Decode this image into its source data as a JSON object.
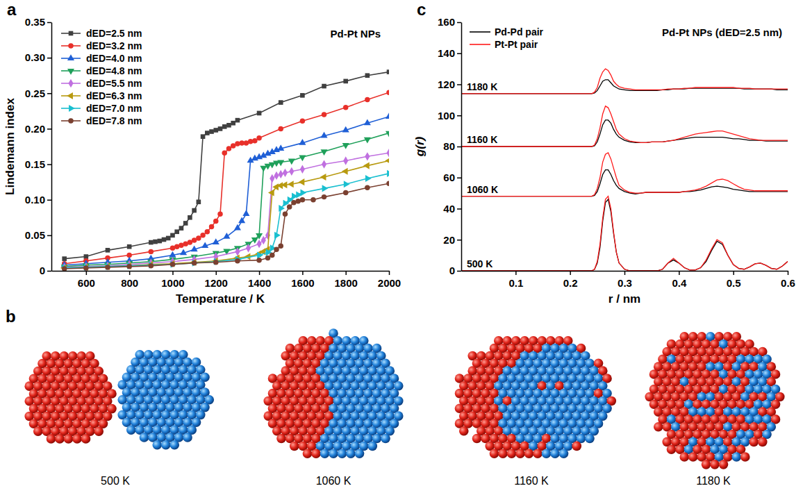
{
  "chart_data": [
    {
      "type": "line",
      "panel_label": "a",
      "annotation": "Pd-Pt NPs",
      "x_label": "Temperature / K",
      "y_label": "Lindemann index",
      "xlim": [
        440,
        2000
      ],
      "xticks": [
        600,
        800,
        1000,
        1200,
        1400,
        1600,
        1800,
        2000
      ],
      "ylim": [
        0,
        0.35
      ],
      "yticks": [
        0,
        0.05,
        {
          "value": 0.1,
          "label": "0.10"
        },
        0.15,
        {
          "value": 0.2,
          "label": "0.20"
        },
        0.25,
        {
          "value": 0.3,
          "label": "0.30"
        },
        0.35
      ],
      "grid": false,
      "legend": "upper left",
      "series": [
        {
          "name": "dED=2.5 nm",
          "color": "#404040",
          "marker": "square",
          "x": [
            500,
            600,
            700,
            800,
            900,
            920,
            940,
            960,
            980,
            1000,
            1020,
            1040,
            1060,
            1080,
            1100,
            1120,
            1140,
            1160,
            1180,
            1200,
            1220,
            1240,
            1260,
            1280,
            1300,
            1400,
            1500,
            1600,
            1700,
            1800,
            1900,
            2000
          ],
          "values": [
            0.017,
            0.02,
            0.029,
            0.034,
            0.04,
            0.041,
            0.042,
            0.044,
            0.046,
            0.05,
            0.055,
            0.06,
            0.067,
            0.075,
            0.085,
            0.097,
            0.189,
            0.194,
            0.196,
            0.198,
            0.2,
            0.203,
            0.205,
            0.208,
            0.212,
            0.222,
            0.237,
            0.247,
            0.26,
            0.267,
            0.275,
            0.28
          ]
        },
        {
          "name": "dED=3.2 nm",
          "color": "#e8302a",
          "marker": "circle",
          "x": [
            500,
            600,
            700,
            800,
            900,
            1000,
            1020,
            1040,
            1060,
            1080,
            1100,
            1120,
            1140,
            1160,
            1180,
            1200,
            1220,
            1240,
            1260,
            1280,
            1300,
            1320,
            1340,
            1360,
            1380,
            1400,
            1500,
            1600,
            1700,
            1800,
            1900,
            2000
          ],
          "values": [
            0.01,
            0.014,
            0.018,
            0.022,
            0.027,
            0.032,
            0.034,
            0.036,
            0.038,
            0.04,
            0.043,
            0.046,
            0.05,
            0.055,
            0.062,
            0.07,
            0.08,
            0.166,
            0.172,
            0.176,
            0.179,
            0.18,
            0.18,
            0.182,
            0.183,
            0.187,
            0.2,
            0.211,
            0.22,
            0.23,
            0.241,
            0.251
          ]
        },
        {
          "name": "dED=4.0 nm",
          "color": "#1f5fd6",
          "marker": "triangle",
          "x": [
            500,
            600,
            700,
            800,
            900,
            1000,
            1050,
            1100,
            1150,
            1200,
            1250,
            1300,
            1320,
            1340,
            1360,
            1380,
            1400,
            1420,
            1440,
            1460,
            1480,
            1500,
            1600,
            1700,
            1800,
            1900,
            2000
          ],
          "values": [
            0.008,
            0.01,
            0.012,
            0.014,
            0.017,
            0.022,
            0.025,
            0.03,
            0.035,
            0.04,
            0.048,
            0.06,
            0.07,
            0.08,
            0.155,
            0.158,
            0.16,
            0.162,
            0.165,
            0.167,
            0.17,
            0.172,
            0.18,
            0.19,
            0.198,
            0.208,
            0.217
          ]
        },
        {
          "name": "dED=4.8 nm",
          "color": "#1fa05a",
          "marker": "triangle-down",
          "x": [
            500,
            600,
            700,
            800,
            900,
            1000,
            1100,
            1200,
            1250,
            1300,
            1350,
            1380,
            1400,
            1420,
            1440,
            1460,
            1480,
            1500,
            1550,
            1600,
            1700,
            1800,
            1900,
            2000
          ],
          "values": [
            0.006,
            0.008,
            0.009,
            0.011,
            0.013,
            0.016,
            0.02,
            0.025,
            0.028,
            0.032,
            0.038,
            0.044,
            0.05,
            0.145,
            0.148,
            0.15,
            0.152,
            0.153,
            0.155,
            0.16,
            0.168,
            0.177,
            0.185,
            0.194
          ]
        },
        {
          "name": "dED=5.5 nm",
          "color": "#c070e0",
          "marker": "diamond",
          "x": [
            500,
            600,
            700,
            800,
            900,
            1000,
            1100,
            1200,
            1300,
            1350,
            1400,
            1420,
            1440,
            1460,
            1480,
            1500,
            1520,
            1550,
            1600,
            1700,
            1800,
            1900,
            2000
          ],
          "values": [
            0.005,
            0.006,
            0.007,
            0.009,
            0.011,
            0.013,
            0.016,
            0.02,
            0.027,
            0.032,
            0.038,
            0.043,
            0.05,
            0.13,
            0.134,
            0.136,
            0.138,
            0.14,
            0.143,
            0.15,
            0.155,
            0.161,
            0.166
          ]
        },
        {
          "name": "dED=6.3 nm",
          "color": "#b89a10",
          "marker": "triangle-left",
          "x": [
            500,
            600,
            700,
            800,
            900,
            1000,
            1100,
            1200,
            1300,
            1350,
            1400,
            1420,
            1440,
            1460,
            1480,
            1500,
            1520,
            1550,
            1600,
            1700,
            1800,
            1900,
            2000
          ],
          "values": [
            0.004,
            0.005,
            0.006,
            0.007,
            0.009,
            0.01,
            0.012,
            0.014,
            0.018,
            0.02,
            0.024,
            0.027,
            0.03,
            0.11,
            0.118,
            0.12,
            0.121,
            0.122,
            0.125,
            0.132,
            0.14,
            0.148,
            0.155
          ]
        },
        {
          "name": "dED=7.0 nm",
          "color": "#19bfd0",
          "marker": "triangle-right",
          "x": [
            500,
            600,
            700,
            800,
            900,
            1000,
            1100,
            1200,
            1300,
            1400,
            1440,
            1460,
            1480,
            1500,
            1520,
            1540,
            1560,
            1580,
            1600,
            1700,
            1800,
            1900,
            2000
          ],
          "values": [
            0.004,
            0.005,
            0.006,
            0.007,
            0.008,
            0.009,
            0.011,
            0.013,
            0.016,
            0.022,
            0.026,
            0.032,
            0.05,
            0.088,
            0.095,
            0.1,
            0.105,
            0.107,
            0.11,
            0.116,
            0.122,
            0.13,
            0.137
          ]
        },
        {
          "name": "dED=7.8 nm",
          "color": "#7a4030",
          "marker": "circle",
          "x": [
            500,
            600,
            700,
            800,
            900,
            1000,
            1100,
            1200,
            1300,
            1400,
            1440,
            1460,
            1480,
            1500,
            1520,
            1540,
            1560,
            1580,
            1600,
            1650,
            1700,
            1800,
            1900,
            2000
          ],
          "values": [
            0.003,
            0.004,
            0.005,
            0.006,
            0.007,
            0.009,
            0.011,
            0.012,
            0.014,
            0.015,
            0.018,
            0.022,
            0.03,
            0.035,
            0.08,
            0.09,
            0.096,
            0.098,
            0.1,
            0.1,
            0.104,
            0.11,
            0.117,
            0.123
          ]
        }
      ]
    },
    {
      "type": "snapshots",
      "panel_label": "b",
      "labels": [
        "500 K",
        "1060 K",
        "1160 K",
        "1180 K"
      ]
    },
    {
      "type": "line",
      "panel_label": "c",
      "annotation": "Pd-Pt NPs (dED=2.5 nm)",
      "x_label": "r / nm",
      "y_label": "g(r)",
      "xlim": [
        0,
        0.6
      ],
      "xticks": [
        0.1,
        0.2,
        0.3,
        0.4,
        0.5,
        0.6
      ],
      "ylim": [
        0,
        160
      ],
      "yticks": [
        0,
        20,
        40,
        60,
        80,
        100,
        120,
        140,
        160
      ],
      "grid": false,
      "legend": "upper left",
      "curve_labels": [
        "500 K",
        "1060 K",
        "1160 K",
        "1180 K"
      ],
      "x": [
        0,
        0.05,
        0.1,
        0.15,
        0.2,
        0.22,
        0.23,
        0.24,
        0.245,
        0.25,
        0.255,
        0.26,
        0.265,
        0.27,
        0.275,
        0.28,
        0.285,
        0.29,
        0.3,
        0.31,
        0.32,
        0.33,
        0.34,
        0.35,
        0.36,
        0.37,
        0.38,
        0.39,
        0.4,
        0.41,
        0.42,
        0.43,
        0.44,
        0.45,
        0.46,
        0.47,
        0.48,
        0.49,
        0.5,
        0.51,
        0.52,
        0.53,
        0.54,
        0.55,
        0.56,
        0.57,
        0.58,
        0.59,
        0.6
      ],
      "series": [
        {
          "name": "Pd-Pd pair",
          "color": "#000000",
          "values": [
            [
              0,
              0,
              0,
              0,
              0,
              0,
              0,
              0,
              1,
              5,
              15,
              32,
              44,
              46,
              38,
              24,
              12,
              5,
              1,
              0,
              0,
              0,
              0,
              0,
              0,
              1,
              5,
              7,
              5,
              2,
              0.5,
              0.5,
              2,
              6,
              13,
              19,
              17,
              10,
              4,
              1.5,
              1,
              2.5,
              4.5,
              5,
              3.5,
              1.5,
              1,
              3,
              6
            ],
            [
              48,
              48,
              48,
              48,
              48,
              48,
              48,
              48,
              48.5,
              51,
              56,
              62,
              65,
              65,
              62,
              58,
              55,
              53,
              51,
              50,
              49.5,
              50,
              50.5,
              50.5,
              50.5,
              50.5,
              50.5,
              50.5,
              50.5,
              51,
              51,
              51.5,
              52,
              53,
              54,
              54.5,
              54,
              53.5,
              52.5,
              52,
              51.5,
              51,
              51,
              51,
              51,
              51,
              51,
              51,
              51
            ],
            [
              80,
              80,
              80,
              80,
              80,
              80,
              80,
              80,
              80.5,
              83,
              88,
              94,
              97,
              97,
              95,
              91,
              88,
              86,
              84,
              83,
              82.5,
              82.5,
              82.5,
              83,
              83,
              83,
              83.5,
              84,
              84.5,
              85,
              85.5,
              86,
              86,
              86,
              86,
              86,
              86,
              85.5,
              85,
              85,
              84.5,
              84,
              84,
              84,
              83.5,
              83.5,
              83.5,
              83.5,
              83.5
            ],
            [
              114,
              114,
              114,
              114,
              114,
              114,
              114,
              114,
              114.5,
              116,
              119,
              122,
              123,
              123,
              121,
              119,
              118,
              117,
              116.5,
              116,
              116,
              116,
              116,
              116,
              116,
              116.5,
              116.5,
              117,
              117,
              117,
              117.5,
              117.5,
              117.5,
              117.5,
              117.5,
              117.5,
              117.5,
              117.5,
              117.5,
              117.5,
              117,
              117,
              117,
              117,
              117,
              117,
              116.5,
              116.5,
              116.5
            ]
          ]
        },
        {
          "name": "Pt-Pt pair",
          "color": "#ff1a1a",
          "values": [
            [
              0,
              0,
              0,
              0,
              0,
              0,
              0,
              0,
              1,
              6,
              17,
              34,
              46,
              48,
              40,
              25,
              12,
              5,
              1,
              0,
              0,
              0,
              0,
              0,
              0,
              1,
              5,
              8,
              5,
              2,
              0.5,
              0.5,
              2,
              7,
              14,
              20,
              18,
              10,
              4,
              1.5,
              1,
              2.5,
              4.5,
              5,
              3.5,
              1.5,
              1,
              3,
              6
            ],
            [
              48,
              48,
              48,
              48,
              48,
              48,
              48,
              48,
              49,
              53,
              60,
              70,
              75,
              76,
              72,
              66,
              60,
              55,
              52,
              50.5,
              50,
              50,
              50.5,
              50.5,
              50.5,
              50.5,
              50.5,
              50.5,
              50.5,
              51,
              51.5,
              52,
              53,
              54.5,
              56.5,
              58.5,
              59,
              58,
              56,
              54,
              52.5,
              52,
              51.5,
              51.5,
              51.5,
              51.5,
              51.5,
              51.5,
              51.5
            ],
            [
              80,
              80,
              80,
              80,
              80,
              80,
              80,
              80,
              81,
              85,
              92,
              101,
              106,
              105,
              101,
              96,
              91,
              88,
              85,
              83.5,
              83,
              82.5,
              82.5,
              83,
              83,
              83,
              83.5,
              84,
              85,
              86,
              87,
              88,
              88.5,
              89,
              89.5,
              90,
              90,
              89,
              88,
              87,
              86,
              85,
              84.5,
              84,
              84,
              84,
              84,
              84,
              84
            ],
            [
              114,
              114,
              114,
              114,
              114,
              114,
              114,
              114,
              115,
              118,
              124,
              128,
              130,
              129,
              126,
              122,
              120,
              118.5,
              117.5,
              117,
              116.5,
              116.5,
              116.5,
              116.5,
              116.5,
              116.5,
              117,
              117,
              117,
              117.5,
              117.5,
              118,
              118,
              118,
              118,
              118,
              118,
              118,
              118,
              117.5,
              117.5,
              117.5,
              117,
              117,
              117,
              117,
              117,
              117,
              117
            ]
          ]
        }
      ]
    }
  ]
}
